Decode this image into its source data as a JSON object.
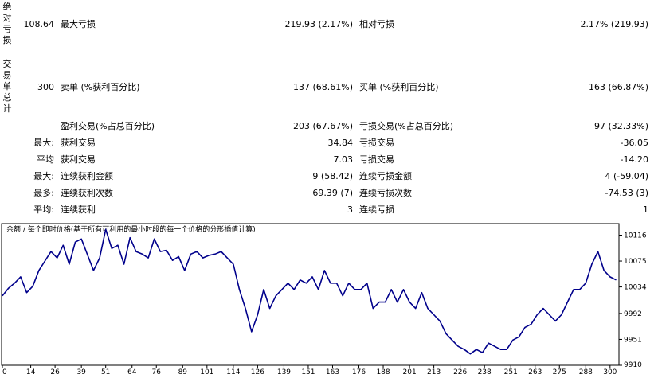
{
  "report": {
    "drawdown": {
      "group_label": "绝对亏损",
      "absolute_value": "108.64",
      "maximal_label": "最大亏损",
      "maximal_value": "219.93 (2.17%)",
      "relative_label": "相对亏损",
      "relative_value": "2.17% (219.93)"
    },
    "trades": {
      "group_label": "交易单总计",
      "total_value": "300",
      "short_label": "卖单 (%获利百分比)",
      "short_value": "137 (68.61%)",
      "long_label": "买单 (%获利百分比)",
      "long_value": "163 (66.87%)"
    },
    "rows": [
      {
        "prefix": "",
        "left_label": "盈利交易(%占总百分比)",
        "left_value": "203 (67.67%)",
        "right_label": "亏损交易(%占总百分比)",
        "right_value": "97 (32.33%)"
      },
      {
        "prefix": "最大:",
        "left_label": "获利交易",
        "left_value": "34.84",
        "right_label": "亏损交易",
        "right_value": "-36.05"
      },
      {
        "prefix": "平均",
        "left_label": "获利交易",
        "left_value": "7.03",
        "right_label": "亏损交易",
        "right_value": "-14.20"
      },
      {
        "prefix": "最大:",
        "left_label": "连续获利金额",
        "left_value": "9 (58.42)",
        "right_label": "连续亏损金额",
        "right_value": "4 (-59.04)"
      },
      {
        "prefix": "最多:",
        "left_label": "连续获利次数",
        "left_value": "69.39 (7)",
        "right_label": "连续亏损次数",
        "right_value": "-74.53 (3)"
      },
      {
        "prefix": "平均:",
        "left_label": "连续获利",
        "left_value": "3",
        "right_label": "连续亏损",
        "right_value": "1"
      }
    ]
  },
  "chart_data": {
    "type": "line",
    "title": "余额 / 每个即时价格(基于所有可利用的最小时段的每一个价格的分形插值计算)",
    "series_color": "#00008b",
    "x_ticks": [
      0,
      14,
      26,
      39,
      51,
      64,
      76,
      89,
      101,
      114,
      126,
      139,
      151,
      163,
      176,
      188,
      201,
      213,
      226,
      238,
      251,
      263,
      275,
      288,
      300
    ],
    "y_ticks": [
      10116,
      10075,
      10034,
      9992,
      9951,
      9910
    ],
    "xlim": [
      0,
      304
    ],
    "ylim": [
      9910,
      10133
    ],
    "x": [
      0,
      3,
      6,
      9,
      12,
      15,
      18,
      21,
      24,
      27,
      30,
      33,
      36,
      39,
      42,
      45,
      48,
      51,
      54,
      57,
      60,
      63,
      66,
      69,
      72,
      75,
      78,
      81,
      84,
      87,
      90,
      93,
      96,
      99,
      102,
      105,
      108,
      111,
      114,
      117,
      120,
      123,
      126,
      129,
      132,
      135,
      138,
      141,
      144,
      147,
      150,
      153,
      156,
      159,
      162,
      165,
      168,
      171,
      174,
      177,
      180,
      183,
      186,
      189,
      192,
      195,
      198,
      201,
      204,
      207,
      210,
      213,
      216,
      219,
      222,
      225,
      228,
      231,
      234,
      237,
      240,
      243,
      246,
      249,
      252,
      255,
      258,
      261,
      264,
      267,
      270,
      273,
      276,
      279,
      282,
      285,
      288,
      291,
      294,
      297,
      300,
      303
    ],
    "y": [
      10020,
      10032,
      10040,
      10050,
      10025,
      10035,
      10060,
      10075,
      10090,
      10080,
      10100,
      10070,
      10105,
      10110,
      10085,
      10060,
      10080,
      10125,
      10095,
      10100,
      10070,
      10112,
      10090,
      10086,
      10080,
      10110,
      10090,
      10092,
      10076,
      10082,
      10060,
      10086,
      10090,
      10080,
      10084,
      10086,
      10090,
      10080,
      10070,
      10030,
      10000,
      9963,
      9990,
      10030,
      10000,
      10020,
      10030,
      10040,
      10030,
      10045,
      10040,
      10050,
      10030,
      10060,
      10040,
      10040,
      10020,
      10040,
      10030,
      10030,
      10040,
      10000,
      10010,
      10010,
      10030,
      10010,
      10030,
      10010,
      10000,
      10025,
      10000,
      9990,
      9980,
      9960,
      9950,
      9940,
      9935,
      9928,
      9935,
      9930,
      9945,
      9940,
      9935,
      9935,
      9950,
      9955,
      9970,
      9975,
      9990,
      10000,
      9990,
      9980,
      9990,
      10010,
      10030,
      10030,
      10040,
      10070,
      10090,
      10060,
      10050,
      10045
    ]
  }
}
